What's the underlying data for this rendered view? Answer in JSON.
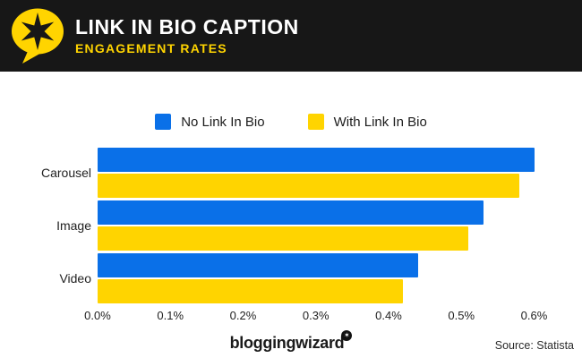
{
  "header": {
    "title": "LINK IN BIO CAPTION",
    "subtitle": "ENGAGEMENT RATES",
    "logo": "star-speech-bubble",
    "background_color": "#171717",
    "accent_color": "#ffd400"
  },
  "chart_data": {
    "type": "bar",
    "orientation": "horizontal",
    "title": "Link In Bio Caption Engagement Rates",
    "categories": [
      "Carousel",
      "Image",
      "Video"
    ],
    "series": [
      {
        "name": "No Link In Bio",
        "color": "#0a70e8",
        "values": [
          0.6,
          0.53,
          0.44
        ]
      },
      {
        "name": "With Link In Bio",
        "color": "#ffd400",
        "values": [
          0.58,
          0.51,
          0.42
        ]
      }
    ],
    "x_ticks": [
      "0.0%",
      "0.1%",
      "0.2%",
      "0.3%",
      "0.4%",
      "0.5%",
      "0.6%"
    ],
    "x_tick_values": [
      0,
      0.1,
      0.2,
      0.3,
      0.4,
      0.5,
      0.6
    ],
    "xlim": [
      0,
      0.64
    ],
    "unit": "%",
    "legend_position": "top",
    "grid": false
  },
  "footer": {
    "brand": "bloggingwizard",
    "badge_icon": "star-badge",
    "source": "Source: Statista"
  }
}
